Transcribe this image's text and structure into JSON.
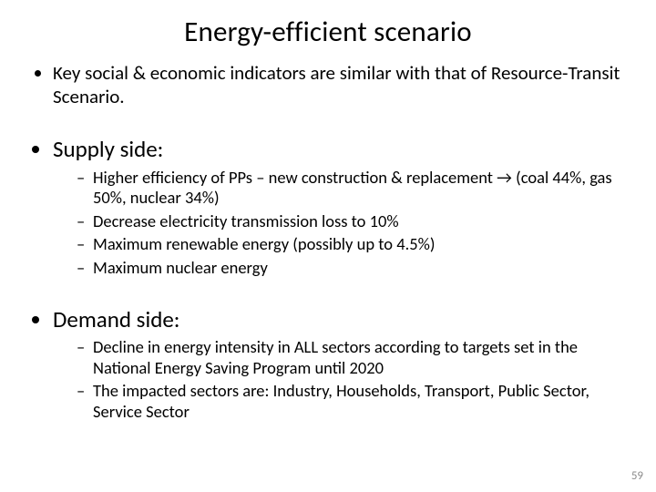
{
  "title": "Energy-efficient scenario",
  "bullets": {
    "intro": "Key social & economic indicators are similar with that of Resource-Transit Scenario.",
    "supply_label": "Supply side:",
    "supply": [
      "Higher efficiency of PPs – new construction & replacement → (coal 44%, gas 50%, nuclear 34%)",
      "Decrease electricity transmission loss to 10%",
      "Maximum renewable energy (possibly up to 4.5%)",
      "Maximum nuclear energy"
    ],
    "demand_label": "Demand side:",
    "demand": [
      "Decline in energy intensity in ALL sectors according to targets set in the National Energy Saving Program until 2020",
      "The impacted sectors are: Industry, Households, Transport, Public Sector, Service Sector"
    ]
  },
  "page_number": "59",
  "colors": {
    "background": "#ffffff",
    "text": "#000000",
    "pagenum": "#8a8a8a"
  }
}
